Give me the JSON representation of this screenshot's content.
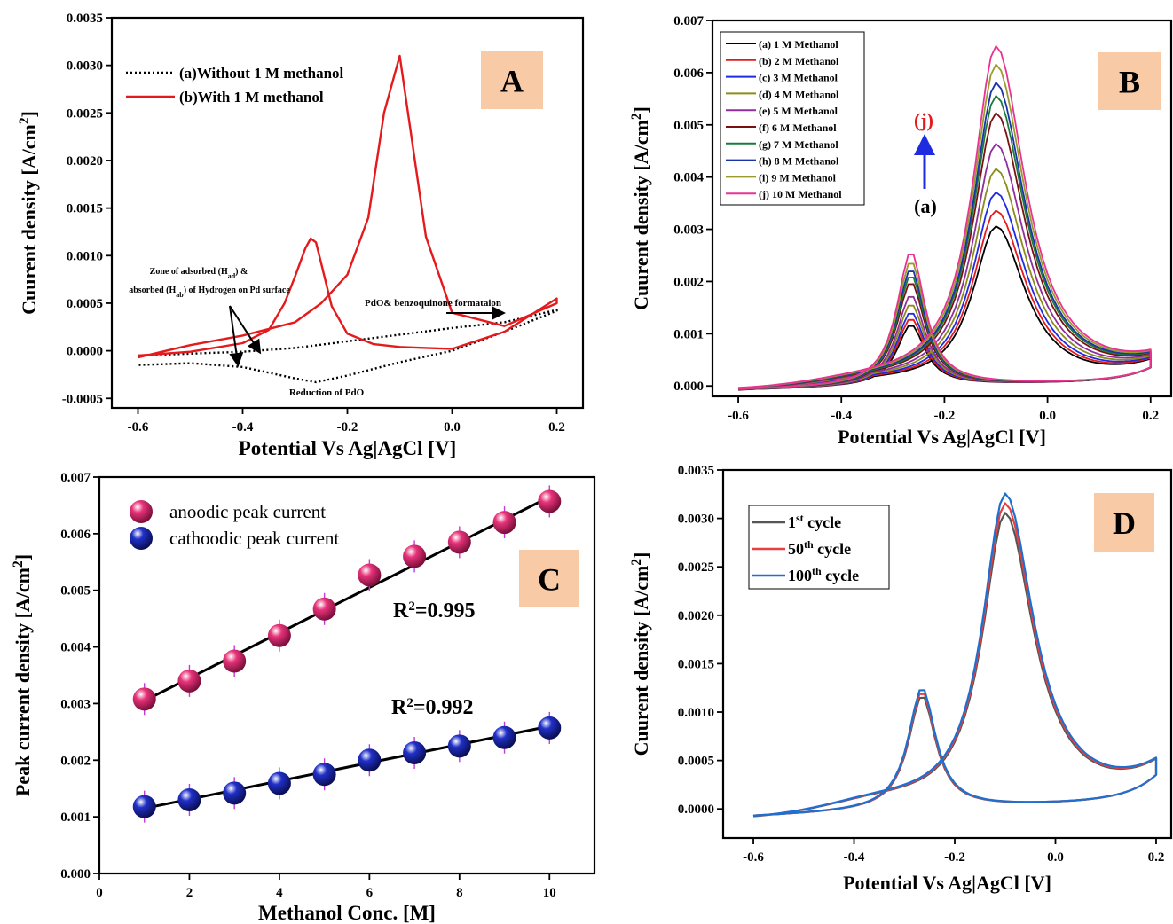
{
  "chart_data": [
    {
      "panel": "A",
      "type": "line",
      "panel_label": "A",
      "label_color": "#f8cba6",
      "xlabel": "Potential Vs Ag|AgCl [V]",
      "ylabel_main": "Cuurent density [A/cm",
      "ylabel_sup": "2",
      "ylabel_end": "]",
      "xlim": [
        -0.65,
        0.25
      ],
      "ylim": [
        -0.0006,
        0.0035
      ],
      "xticks": [
        "-0.6",
        "-0.4",
        "-0.2",
        "0.0",
        "0.2"
      ],
      "xtick_values": [
        -0.6,
        -0.4,
        -0.2,
        0.0,
        0.2
      ],
      "yticks": [
        "-0.0005",
        "0.0000",
        "0.0005",
        "0.0010",
        "0.0015",
        "0.0020",
        "0.0025",
        "0.0030",
        "0.0035"
      ],
      "ytick_values": [
        -0.0005,
        0.0,
        0.0005,
        0.001,
        0.0015,
        0.002,
        0.0025,
        0.003,
        0.0035
      ],
      "legend": [
        {
          "label": "(a)Without 1 M methanol",
          "color": "#000000",
          "dash": "dotted"
        },
        {
          "label": "(b)With 1 M methanol",
          "color": "#e41a1c",
          "dash": "solid"
        }
      ],
      "annotations": {
        "zone_line1": "Zone of adsorbed (H",
        "zone_line1_sub": "ad",
        "zone_line1_end": ") &",
        "zone_line2": "absorbed (H",
        "zone_line2_sub": "ab",
        "zone_line2_end": ") of Hydrogen on Pd surface",
        "pdo_formation": "PdO& benzoquinone formataion",
        "reduction": "Reduction of PdO"
      },
      "series": [
        {
          "name": "(a)Without 1 M methanol",
          "color": "#000000",
          "dash": "dotted",
          "x": [
            -0.6,
            -0.5,
            -0.4,
            -0.3,
            -0.2,
            -0.1,
            0.0,
            0.1,
            0.2,
            0.2,
            0.1,
            0.0,
            -0.1,
            -0.2,
            -0.26,
            -0.3,
            -0.4,
            -0.5,
            -0.6
          ],
          "y": [
            -5e-05,
            -3e-05,
            -1e-05,
            3e-05,
            0.0001,
            0.00017,
            0.00024,
            0.0003,
            0.00043,
            0.00042,
            0.0002,
            0.0,
            -0.00012,
            -0.00026,
            -0.00033,
            -0.00029,
            -0.00017,
            -0.00013,
            -0.00015
          ]
        },
        {
          "name": "(b)With 1 M methanol",
          "color": "#e41a1c",
          "dash": "solid",
          "x": [
            -0.6,
            -0.5,
            -0.4,
            -0.35,
            -0.32,
            -0.3,
            -0.28,
            -0.27,
            -0.26,
            -0.25,
            -0.23,
            -0.2,
            -0.15,
            -0.1,
            -0.05,
            0.0,
            0.1,
            0.2,
            0.2,
            0.1,
            0.0,
            -0.05,
            -0.1,
            -0.13,
            -0.16,
            -0.2,
            -0.25,
            -0.3,
            -0.4,
            -0.5,
            -0.6
          ],
          "y": [
            -5e-05,
            -1e-05,
            8e-05,
            0.00022,
            0.0005,
            0.00078,
            0.00108,
            0.00118,
            0.00114,
            0.00092,
            0.00047,
            0.00018,
            7e-05,
            4e-05,
            3e-05,
            2e-05,
            0.0002,
            0.00055,
            0.0005,
            0.00026,
            0.0004,
            0.0012,
            0.0031,
            0.0025,
            0.0014,
            0.0008,
            0.0005,
            0.0003,
            0.00016,
            6e-05,
            -7e-05
          ]
        }
      ]
    },
    {
      "panel": "B",
      "type": "line",
      "panel_label": "B",
      "label_color": "#f8cba6",
      "xlabel": "Potential Vs Ag|AgCl [V]",
      "ylabel_main": "Cuurent density [A/cm",
      "ylabel_sup": "2",
      "ylabel_end": "]",
      "xlim": [
        -0.65,
        0.24
      ],
      "ylim": [
        -0.0002,
        0.007
      ],
      "xticks": [
        "-0.6",
        "-0.4",
        "-0.2",
        "0.0",
        "0.2"
      ],
      "xtick_values": [
        -0.6,
        -0.4,
        -0.2,
        0.0,
        0.2
      ],
      "yticks": [
        "0.000",
        "0.001",
        "0.002",
        "0.003",
        "0.004",
        "0.005",
        "0.006",
        "0.007"
      ],
      "ytick_values": [
        0.0,
        0.001,
        0.002,
        0.003,
        0.004,
        0.005,
        0.006,
        0.007
      ],
      "arrow_top_label": "(j)",
      "arrow_bottom_label": "(a)",
      "series": [
        {
          "name": "(a) 1 M Methanol",
          "color": "#000000",
          "anodic": 0.0031,
          "cathodic": 0.00118
        },
        {
          "name": "(b) 2 M Methanol",
          "color": "#e41a1c",
          "anodic": 0.0034,
          "cathodic": 0.0013
        },
        {
          "name": "(c) 3 M Methanol",
          "color": "#1f2be0",
          "anodic": 0.00375,
          "cathodic": 0.00142
        },
        {
          "name": "(d) 4 M Methanol",
          "color": "#8c8c1a",
          "anodic": 0.0042,
          "cathodic": 0.00158
        },
        {
          "name": "(e) 5 M Methanol",
          "color": "#8e2f9b",
          "anodic": 0.00468,
          "cathodic": 0.00175
        },
        {
          "name": "(f) 6 M Methanol",
          "color": "#7a1010",
          "anodic": 0.00527,
          "cathodic": 0.002
        },
        {
          "name": "(g) 7 M Methanol",
          "color": "#1b7a3a",
          "anodic": 0.0056,
          "cathodic": 0.00213
        },
        {
          "name": "(h) 8 M Methanol",
          "color": "#1a33a8",
          "anodic": 0.00585,
          "cathodic": 0.00225
        },
        {
          "name": "(i) 9 M Methanol",
          "color": "#9a9a2c",
          "anodic": 0.0062,
          "cathodic": 0.0024
        },
        {
          "name": "(j) 10 M Methanol",
          "color": "#e8338f",
          "anodic": 0.00655,
          "cathodic": 0.00258
        }
      ]
    },
    {
      "panel": "C",
      "type": "scatter",
      "panel_label": "C",
      "label_color": "#f8cba6",
      "xlabel": "Methanol Conc. [M]",
      "ylabel_main": "Peak current density [A/cm",
      "ylabel_sup": "2",
      "ylabel_end": "]",
      "xlim": [
        0,
        11
      ],
      "ylim": [
        0.0,
        0.007
      ],
      "xticks": [
        "0",
        "2",
        "4",
        "6",
        "8",
        "10"
      ],
      "xtick_values": [
        0,
        2,
        4,
        6,
        8,
        10
      ],
      "yticks": [
        "0.000",
        "0.001",
        "0.002",
        "0.003",
        "0.004",
        "0.005",
        "0.006",
        "0.007"
      ],
      "ytick_values": [
        0.0,
        0.001,
        0.002,
        0.003,
        0.004,
        0.005,
        0.006,
        0.007
      ],
      "r2_anodic_base": "R",
      "r2_anodic_sup": "2",
      "r2_anodic_value": "=0.995",
      "r2_cathodic_base": "R",
      "r2_cathodic_sup": "2",
      "r2_cathodic_value": "=0.992",
      "x": [
        1,
        2,
        3,
        4,
        5,
        6,
        7,
        8,
        9,
        10
      ],
      "series": [
        {
          "name": "anoodic peak current",
          "color": "#e8337a",
          "values": [
            0.00308,
            0.0034,
            0.00375,
            0.0042,
            0.00467,
            0.00527,
            0.0056,
            0.00585,
            0.0062,
            0.00657
          ],
          "fit": [
            0.00305,
            0.00665
          ]
        },
        {
          "name": "cathoodic peak current",
          "color": "#2030c8",
          "values": [
            0.00118,
            0.0013,
            0.00142,
            0.00159,
            0.00175,
            0.002,
            0.00213,
            0.00225,
            0.0024,
            0.00257
          ],
          "fit": [
            0.00115,
            0.0026
          ]
        }
      ]
    },
    {
      "panel": "D",
      "type": "line",
      "panel_label": "D",
      "label_color": "#f8cba6",
      "xlabel": "Potential Vs Ag|AgCl [V]",
      "ylabel_main": "Cuurent density [A/cm",
      "ylabel_sup": "2",
      "ylabel_end": "]",
      "xlim": [
        -0.66,
        0.23
      ],
      "ylim": [
        -0.0003,
        0.0035
      ],
      "xticks": [
        "-0.6",
        "-0.4",
        "-0.2",
        "0.0",
        "0.2"
      ],
      "xtick_values": [
        -0.6,
        -0.4,
        -0.2,
        0.0,
        0.2
      ],
      "yticks": [
        "0.0000",
        "0.0005",
        "0.0010",
        "0.0015",
        "0.0020",
        "0.0025",
        "0.0030",
        "0.0035"
      ],
      "ytick_values": [
        0.0,
        0.0005,
        0.001,
        0.0015,
        0.002,
        0.0025,
        0.003,
        0.0035
      ],
      "series": [
        {
          "name_base": "1",
          "name_sup": "st",
          "name_end": " cycle",
          "color": "#555555",
          "anodic": 0.0031,
          "cathodic": 0.00118
        },
        {
          "name_base": "50",
          "name_sup": "th",
          "name_end": " cycle",
          "color": "#e84040",
          "anodic": 0.0032,
          "cathodic": 0.00122
        },
        {
          "name_base": "100",
          "name_sup": "th",
          "name_end": " cycle",
          "color": "#1f6fd0",
          "anodic": 0.0033,
          "cathodic": 0.00126
        }
      ]
    }
  ]
}
